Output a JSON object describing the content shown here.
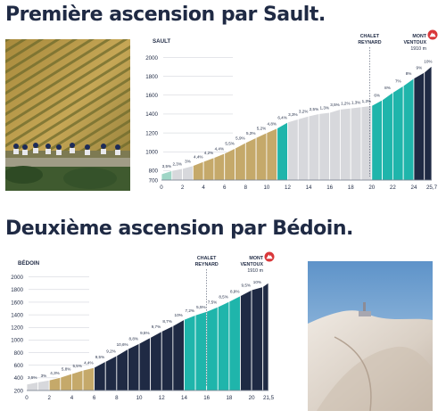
{
  "title_1": "Première ascension par Sault.",
  "title_2": "Deuxième ascension par Bédoin.",
  "colors": {
    "navy": "#1f2a44",
    "teal": "#1fb5ab",
    "khaki": "#c5a96a",
    "grey": "#d7d8dc",
    "mint": "#9fd6c6",
    "summit_marker": "#d9373a"
  },
  "icons": {
    "summit_marker": "mountain-peak-icon"
  },
  "chart_data": [
    {
      "type": "area",
      "name": "Sault",
      "start_label": "SAULT",
      "y_ticks": [
        700,
        800,
        1000,
        1200,
        1400,
        1600,
        1800,
        2000
      ],
      "x_ticks": [
        "0",
        "2",
        "4",
        "6",
        "8",
        "10",
        "12",
        "14",
        "16",
        "18",
        "20",
        "22",
        "24",
        "25,7"
      ],
      "xlim": [
        0,
        25.7
      ],
      "ylim": [
        700,
        2080
      ],
      "segments": [
        {
          "km": 0,
          "elev": 765,
          "gradient": "3,5%",
          "color": "mint"
        },
        {
          "km": 1,
          "elev": 800,
          "gradient": "2,3%",
          "color": "grey"
        },
        {
          "km": 2,
          "elev": 823,
          "gradient": "3%",
          "color": "grey"
        },
        {
          "km": 3,
          "elev": 853,
          "gradient": "4,4%",
          "color": "khaki"
        },
        {
          "km": 4,
          "elev": 897,
          "gradient": "4,2%",
          "color": "khaki"
        },
        {
          "km": 5,
          "elev": 939,
          "gradient": "4,4%",
          "color": "khaki"
        },
        {
          "km": 6,
          "elev": 983,
          "gradient": "5,5%",
          "color": "khaki"
        },
        {
          "km": 7,
          "elev": 1038,
          "gradient": "5,9%",
          "color": "khaki"
        },
        {
          "km": 8,
          "elev": 1097,
          "gradient": "5,3%",
          "color": "khaki"
        },
        {
          "km": 9,
          "elev": 1150,
          "gradient": "5,2%",
          "color": "khaki"
        },
        {
          "km": 10,
          "elev": 1202,
          "gradient": "4,8%",
          "color": "khaki"
        },
        {
          "km": 11,
          "elev": 1250,
          "gradient": "6,4%",
          "color": "teal"
        },
        {
          "km": 12,
          "elev": 1314,
          "gradient": "3,3%",
          "color": "grey"
        },
        {
          "km": 13,
          "elev": 1347,
          "gradient": "3,2%",
          "color": "grey"
        },
        {
          "km": 14,
          "elev": 1379,
          "gradient": "2,5%",
          "color": "grey"
        },
        {
          "km": 15,
          "elev": 1404,
          "gradient": "1,3%",
          "color": "grey"
        },
        {
          "km": 16,
          "elev": 1417,
          "gradient": "3,5%",
          "color": "grey"
        },
        {
          "km": 17,
          "elev": 1452,
          "gradient": "1,2%",
          "color": "grey"
        },
        {
          "km": 18,
          "elev": 1464,
          "gradient": "1,3%",
          "color": "grey"
        },
        {
          "km": 19,
          "elev": 1477,
          "gradient": "1,3%",
          "color": "grey"
        },
        {
          "km": 20,
          "elev": 1490,
          "gradient": "6%",
          "color": "teal"
        },
        {
          "km": 21,
          "elev": 1550,
          "gradient": "8%",
          "color": "teal"
        },
        {
          "km": 22,
          "elev": 1630,
          "gradient": "7%",
          "color": "teal"
        },
        {
          "km": 23,
          "elev": 1700,
          "gradient": "8%",
          "color": "teal"
        },
        {
          "km": 24,
          "elev": 1780,
          "gradient": "9%",
          "color": "navy"
        },
        {
          "km": 25,
          "elev": 1843,
          "gradient": "10%",
          "color": "navy"
        }
      ],
      "end_km": 25.7,
      "end_elev": 1910,
      "landmarks": [
        {
          "label": [
            "CHALET",
            "REYNARD"
          ],
          "km": 19.8
        },
        {
          "label": [
            "MONT",
            "VENTOUX"
          ],
          "km": 25.7,
          "sublabel": "1910 m",
          "summit": true
        }
      ]
    },
    {
      "type": "area",
      "name": "Bédoin",
      "start_label": "BÉDOIN",
      "y_ticks": [
        200,
        400,
        600,
        800,
        1000,
        1200,
        1400,
        1600,
        1800,
        2000
      ],
      "x_ticks": [
        "0",
        "2",
        "4",
        "6",
        "8",
        "10",
        "12",
        "14",
        "16",
        "18",
        "20",
        "21,5"
      ],
      "xlim": [
        0,
        21.5
      ],
      "ylim": [
        200,
        2080
      ],
      "segments": [
        {
          "km": 0,
          "elev": 300,
          "gradient": "3,5%",
          "color": "grey"
        },
        {
          "km": 1,
          "elev": 335,
          "gradient": "3%",
          "color": "grey"
        },
        {
          "km": 2,
          "elev": 365,
          "gradient": "4,3%",
          "color": "khaki"
        },
        {
          "km": 3,
          "elev": 408,
          "gradient": "5,8%",
          "color": "khaki"
        },
        {
          "km": 4,
          "elev": 466,
          "gradient": "5,5%",
          "color": "khaki"
        },
        {
          "km": 5,
          "elev": 521,
          "gradient": "4,4%",
          "color": "khaki"
        },
        {
          "km": 6,
          "elev": 565,
          "gradient": "9,5%",
          "color": "navy"
        },
        {
          "km": 7,
          "elev": 660,
          "gradient": "9,2%",
          "color": "navy"
        },
        {
          "km": 8,
          "elev": 752,
          "gradient": "10,6%",
          "color": "navy"
        },
        {
          "km": 9,
          "elev": 858,
          "gradient": "8,8%",
          "color": "navy"
        },
        {
          "km": 10,
          "elev": 946,
          "gradient": "9,5%",
          "color": "navy"
        },
        {
          "km": 11,
          "elev": 1041,
          "gradient": "9,7%",
          "color": "navy"
        },
        {
          "km": 12,
          "elev": 1138,
          "gradient": "8,7%",
          "color": "navy"
        },
        {
          "km": 13,
          "elev": 1225,
          "gradient": "10%",
          "color": "navy"
        },
        {
          "km": 14,
          "elev": 1325,
          "gradient": "7,2%",
          "color": "teal"
        },
        {
          "km": 15,
          "elev": 1397,
          "gradient": "5,5%",
          "color": "teal"
        },
        {
          "km": 16,
          "elev": 1452,
          "gradient": "7,5%",
          "color": "teal"
        },
        {
          "km": 17,
          "elev": 1527,
          "gradient": "8,5%",
          "color": "teal"
        },
        {
          "km": 18,
          "elev": 1612,
          "gradient": "8,9%",
          "color": "teal"
        },
        {
          "km": 19,
          "elev": 1701,
          "gradient": "9,5%",
          "color": "navy"
        },
        {
          "km": 20,
          "elev": 1796,
          "gradient": "10%",
          "color": "navy"
        },
        {
          "km": 21,
          "elev": 1846,
          "gradient": "",
          "color": "navy"
        }
      ],
      "end_km": 21.5,
      "end_elev": 1910,
      "landmarks": [
        {
          "label": [
            "CHALET",
            "REYNARD"
          ],
          "km": 16,
          "summit": false
        },
        {
          "label": [
            "MONT",
            "VENTOUX"
          ],
          "km": 21.5,
          "sublabel": "1910 m",
          "summit": true
        }
      ]
    }
  ]
}
